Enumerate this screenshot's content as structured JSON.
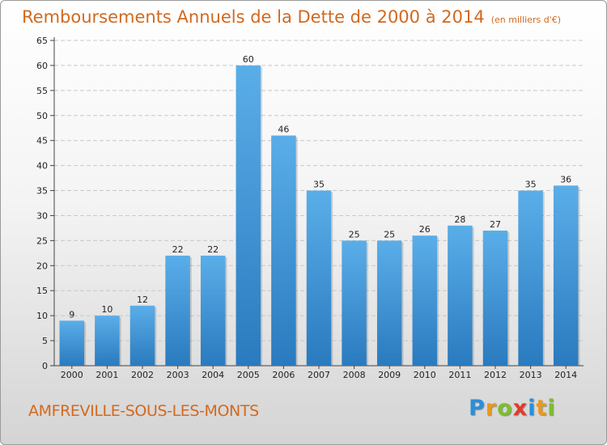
{
  "chart_data": {
    "type": "bar",
    "title": "Remboursements Annuels de la Dette de 2000 à 2014",
    "subtitle": "(en milliers d'€)",
    "categories": [
      "2000",
      "2001",
      "2002",
      "2003",
      "2004",
      "2005",
      "2006",
      "2007",
      "2008",
      "2009",
      "2010",
      "2011",
      "2012",
      "2013",
      "2014"
    ],
    "values": [
      9,
      10,
      12,
      22,
      22,
      60,
      46,
      35,
      25,
      25,
      26,
      28,
      27,
      35,
      36
    ],
    "ylim": [
      0,
      65
    ],
    "yticks": [
      0,
      5,
      10,
      15,
      20,
      25,
      30,
      35,
      40,
      45,
      50,
      55,
      60,
      65
    ],
    "grid": true,
    "bar_color_top": "#5aaee8",
    "bar_color_bottom": "#2a7abf"
  },
  "commune": "AMFREVILLE-SOUS-LES-MONTS",
  "logo": {
    "letters": [
      "P",
      "r",
      "o",
      "x",
      "i",
      "t",
      "i"
    ],
    "colors": [
      "#2a8fd8",
      "#e89a1c",
      "#7cbf2a",
      "#e23a2a",
      "#2a8fd8",
      "#e89a1c",
      "#7cbf2a"
    ]
  }
}
